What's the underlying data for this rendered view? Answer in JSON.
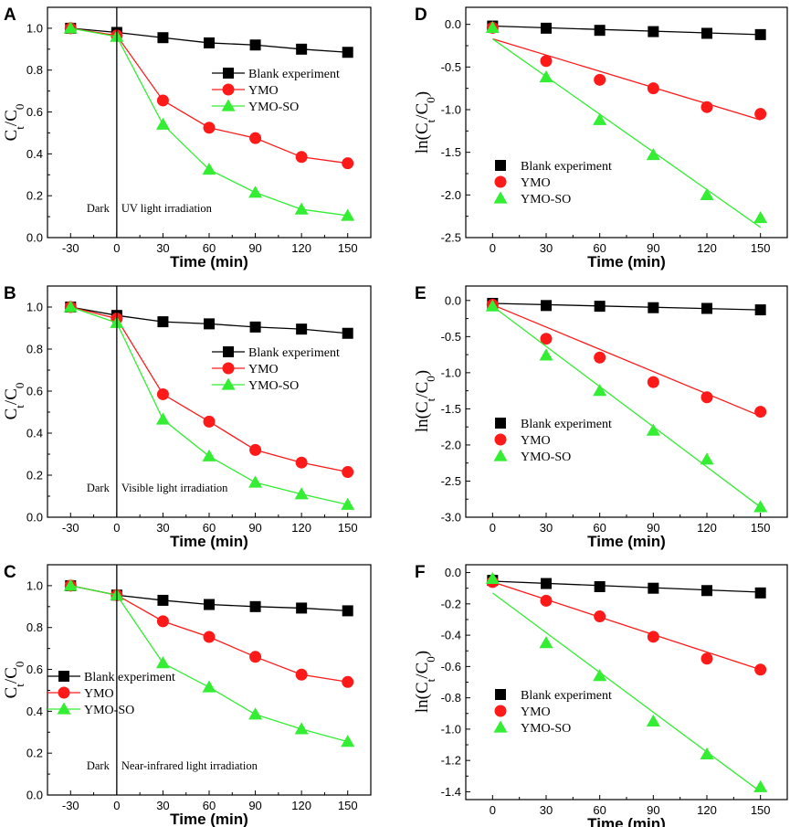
{
  "colors": {
    "blank": "#000000",
    "ymo": "#ff1a1a",
    "ymoso": "#33ee33"
  },
  "chart_data": [
    {
      "panel": "A",
      "type": "line",
      "kind": "ratio",
      "ylabel": "Ct/C0",
      "xlabel": "Time (min)",
      "xlim": [
        -45,
        165
      ],
      "ylim": [
        0,
        1.1
      ],
      "xticks": [
        -30,
        0,
        30,
        60,
        90,
        120,
        150
      ],
      "yticks": [
        0.0,
        0.2,
        0.4,
        0.6,
        0.8,
        1.0
      ],
      "ytick_labels": [
        "0.0",
        "0.2",
        "0.4",
        "0.6",
        "0.8",
        "1.0"
      ],
      "legend": {
        "position": "right",
        "entries": [
          "Blank experiment",
          "YMO",
          "YMO-SO"
        ]
      },
      "annotations": {
        "left": "Dark",
        "right": "UV light irradiation"
      },
      "series": [
        {
          "name": "Blank experiment",
          "marker": "square",
          "x": [
            -30,
            0,
            30,
            60,
            90,
            120,
            150
          ],
          "y": [
            1.0,
            0.98,
            0.955,
            0.93,
            0.92,
            0.9,
            0.885
          ]
        },
        {
          "name": "YMO",
          "marker": "circle",
          "x": [
            -30,
            0,
            30,
            60,
            90,
            120,
            150
          ],
          "y": [
            1.0,
            0.965,
            0.655,
            0.525,
            0.475,
            0.385,
            0.355
          ]
        },
        {
          "name": "YMO-SO",
          "marker": "triangle",
          "x": [
            -30,
            0,
            30,
            60,
            90,
            120,
            150
          ],
          "y": [
            1.0,
            0.96,
            0.54,
            0.325,
            0.215,
            0.135,
            0.105
          ]
        }
      ]
    },
    {
      "panel": "B",
      "type": "line",
      "kind": "ratio",
      "ylabel": "Ct/C0",
      "xlabel": "Time (min)",
      "xlim": [
        -45,
        165
      ],
      "ylim": [
        0,
        1.1
      ],
      "xticks": [
        -30,
        0,
        30,
        60,
        90,
        120,
        150
      ],
      "yticks": [
        0.0,
        0.2,
        0.4,
        0.6,
        0.8,
        1.0
      ],
      "ytick_labels": [
        "0.0",
        "0.2",
        "0.4",
        "0.6",
        "0.8",
        "1.0"
      ],
      "legend": {
        "position": "right",
        "entries": [
          "Blank experiment",
          "YMO",
          "YMO-SO"
        ]
      },
      "annotations": {
        "left": "Dark",
        "right": "Visible light irradiation"
      },
      "series": [
        {
          "name": "Blank experiment",
          "marker": "square",
          "x": [
            -30,
            0,
            30,
            60,
            90,
            120,
            150
          ],
          "y": [
            1.0,
            0.96,
            0.93,
            0.92,
            0.905,
            0.895,
            0.875
          ]
        },
        {
          "name": "YMO",
          "marker": "circle",
          "x": [
            -30,
            0,
            30,
            60,
            90,
            120,
            150
          ],
          "y": [
            1.0,
            0.945,
            0.585,
            0.455,
            0.32,
            0.26,
            0.215
          ]
        },
        {
          "name": "YMO-SO",
          "marker": "triangle",
          "x": [
            -30,
            0,
            30,
            60,
            90,
            120,
            150
          ],
          "y": [
            1.0,
            0.925,
            0.465,
            0.29,
            0.165,
            0.11,
            0.06
          ]
        }
      ]
    },
    {
      "panel": "C",
      "type": "line",
      "kind": "ratio",
      "ylabel": "Ct/C0",
      "xlabel": "Time (min)",
      "xlim": [
        -45,
        165
      ],
      "ylim": [
        0,
        1.1
      ],
      "xticks": [
        -30,
        0,
        30,
        60,
        90,
        120,
        150
      ],
      "yticks": [
        0.0,
        0.2,
        0.4,
        0.6,
        0.8,
        1.0
      ],
      "ytick_labels": [
        "0.0",
        "0.2",
        "0.4",
        "0.6",
        "0.8",
        "1.0"
      ],
      "legend": {
        "position": "lower-left",
        "entries": [
          "Blank experiment",
          "YMO",
          "YMO-SO"
        ]
      },
      "annotations": {
        "left": "Dark",
        "right": "Near-infrared light irradiation"
      },
      "series": [
        {
          "name": "Blank experiment",
          "marker": "square",
          "x": [
            -30,
            0,
            30,
            60,
            90,
            120,
            150
          ],
          "y": [
            1.0,
            0.955,
            0.93,
            0.91,
            0.9,
            0.893,
            0.88
          ]
        },
        {
          "name": "YMO",
          "marker": "circle",
          "x": [
            -30,
            0,
            30,
            60,
            90,
            120,
            150
          ],
          "y": [
            1.0,
            0.955,
            0.83,
            0.755,
            0.66,
            0.575,
            0.54
          ]
        },
        {
          "name": "YMO-SO",
          "marker": "triangle",
          "x": [
            -30,
            0,
            30,
            60,
            90,
            120,
            150
          ],
          "y": [
            1.0,
            0.955,
            0.63,
            0.515,
            0.385,
            0.315,
            0.255
          ]
        }
      ]
    },
    {
      "panel": "D",
      "type": "scatter",
      "kind": "log",
      "ylabel": "ln(Ct/C0)",
      "xlabel": "Time (min)",
      "xlim": [
        -15,
        165
      ],
      "ylim": [
        -2.5,
        0.2
      ],
      "xticks": [
        0,
        30,
        60,
        90,
        120,
        150
      ],
      "yticks": [
        -2.5,
        -2.0,
        -1.5,
        -1.0,
        -0.5,
        0.0
      ],
      "ytick_labels": [
        "-2.5",
        "-2.0",
        "-1.5",
        "-1.0",
        "-0.5",
        "0.0"
      ],
      "legend": {
        "position": "lower-left",
        "entries": [
          "Blank experiment",
          "YMO",
          "YMO-SO"
        ]
      },
      "series": [
        {
          "name": "Blank experiment",
          "marker": "square",
          "x": [
            0,
            30,
            60,
            90,
            120,
            150
          ],
          "y": [
            -0.02,
            -0.045,
            -0.07,
            -0.085,
            -0.105,
            -0.12
          ],
          "fit": [
            -0.02,
            -0.12
          ]
        },
        {
          "name": "YMO",
          "marker": "circle",
          "x": [
            0,
            30,
            60,
            90,
            120,
            150
          ],
          "y": [
            -0.04,
            -0.43,
            -0.65,
            -0.75,
            -0.97,
            -1.05
          ],
          "fit": [
            -0.17,
            -1.12
          ]
        },
        {
          "name": "YMO-SO",
          "marker": "triangle",
          "x": [
            0,
            30,
            60,
            90,
            120,
            150
          ],
          "y": [
            -0.04,
            -0.62,
            -1.12,
            -1.53,
            -2.0,
            -2.27
          ],
          "fit": [
            -0.17,
            -2.38
          ]
        }
      ]
    },
    {
      "panel": "E",
      "type": "scatter",
      "kind": "log",
      "ylabel": "ln(Ct/C0)",
      "xlabel": "Time (min)",
      "xlim": [
        -15,
        165
      ],
      "ylim": [
        -3.0,
        0.2
      ],
      "xticks": [
        0,
        30,
        60,
        90,
        120,
        150
      ],
      "yticks": [
        -3.0,
        -2.5,
        -2.0,
        -1.5,
        -1.0,
        -0.5,
        0.0
      ],
      "ytick_labels": [
        "-3.0",
        "-2.5",
        "-2.0",
        "-1.5",
        "-1.0",
        "-0.5",
        "0.0"
      ],
      "legend": {
        "position": "lower-left",
        "entries": [
          "Blank experiment",
          "YMO",
          "YMO-SO"
        ]
      },
      "series": [
        {
          "name": "Blank experiment",
          "marker": "square",
          "x": [
            0,
            30,
            60,
            90,
            120,
            150
          ],
          "y": [
            -0.04,
            -0.07,
            -0.08,
            -0.1,
            -0.11,
            -0.13
          ],
          "fit": [
            -0.04,
            -0.13
          ]
        },
        {
          "name": "YMO",
          "marker": "circle",
          "x": [
            0,
            30,
            60,
            90,
            120,
            150
          ],
          "y": [
            -0.06,
            -0.53,
            -0.79,
            -1.13,
            -1.34,
            -1.54
          ],
          "fit": [
            -0.06,
            -1.6
          ]
        },
        {
          "name": "YMO-SO",
          "marker": "triangle",
          "x": [
            0,
            30,
            60,
            90,
            120,
            150
          ],
          "y": [
            -0.08,
            -0.76,
            -1.25,
            -1.8,
            -2.2,
            -2.86
          ],
          "fit": [
            -0.08,
            -2.86
          ]
        }
      ]
    },
    {
      "panel": "F",
      "type": "scatter",
      "kind": "log",
      "ylabel": "ln(Ct/C0)",
      "xlabel": "Time (min)",
      "xlim": [
        -15,
        165
      ],
      "ylim": [
        -1.45,
        0.05
      ],
      "xticks": [
        0,
        30,
        60,
        90,
        120,
        150
      ],
      "yticks": [
        -1.4,
        -1.2,
        -1.0,
        -0.8,
        -0.6,
        -0.4,
        -0.2,
        0.0
      ],
      "ytick_labels": [
        "-1.4",
        "-1.2",
        "-1.0",
        "-0.8",
        "-0.6",
        "-0.4",
        "-0.2",
        "0.0"
      ],
      "legend": {
        "position": "lower-left",
        "entries": [
          "Blank experiment",
          "YMO",
          "YMO-SO"
        ]
      },
      "series": [
        {
          "name": "Blank experiment",
          "marker": "square",
          "x": [
            0,
            30,
            60,
            90,
            120,
            150
          ],
          "y": [
            -0.05,
            -0.07,
            -0.09,
            -0.1,
            -0.115,
            -0.13
          ],
          "fit": [
            -0.055,
            -0.125
          ]
        },
        {
          "name": "YMO",
          "marker": "circle",
          "x": [
            0,
            30,
            60,
            90,
            120,
            150
          ],
          "y": [
            -0.06,
            -0.18,
            -0.28,
            -0.41,
            -0.55,
            -0.62
          ],
          "fit": [
            -0.06,
            -0.62
          ]
        },
        {
          "name": "YMO-SO",
          "marker": "triangle",
          "x": [
            0,
            30,
            60,
            90,
            120,
            150
          ],
          "y": [
            -0.04,
            -0.45,
            -0.66,
            -0.95,
            -1.16,
            -1.37
          ],
          "fit": [
            -0.13,
            -1.4
          ]
        }
      ]
    }
  ]
}
